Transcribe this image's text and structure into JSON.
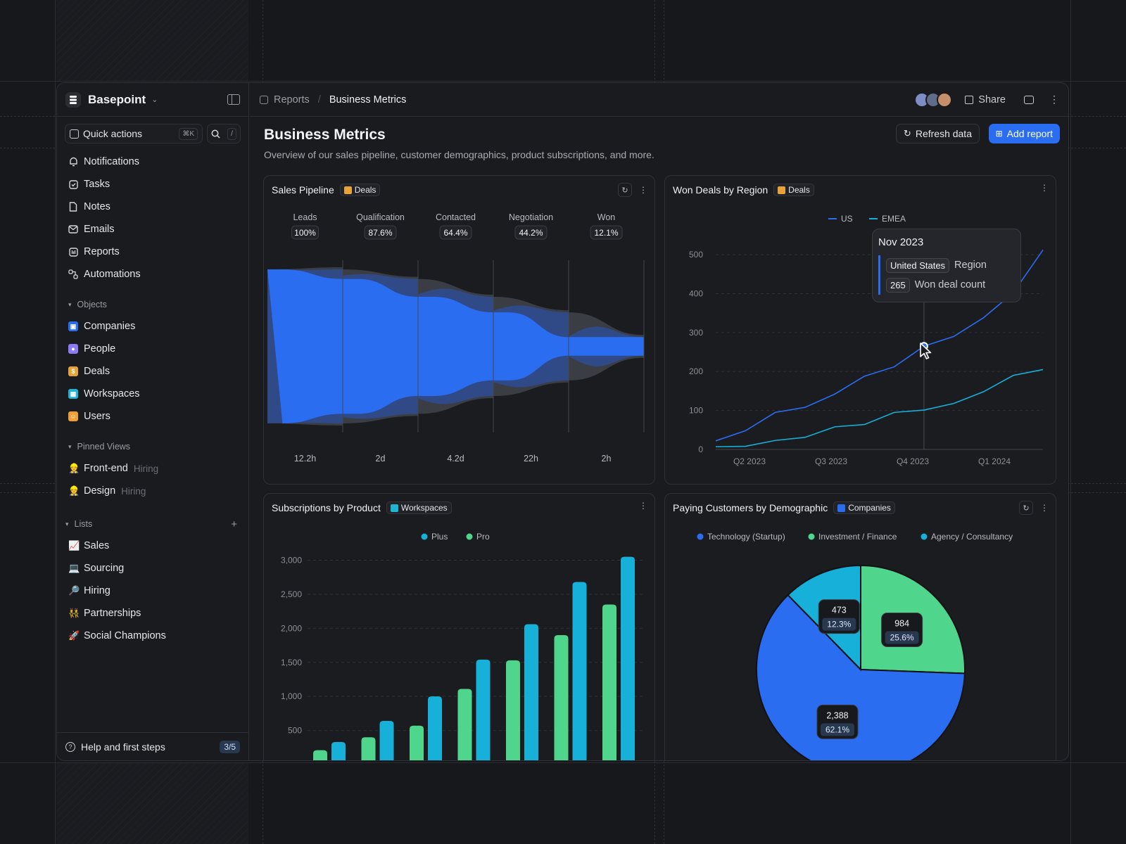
{
  "sidebar": {
    "brand": "Basepoint",
    "quick_actions": "Quick actions",
    "shortcut": "⌘K",
    "search_shortcut": "/",
    "nav": [
      {
        "label": "Notifications",
        "icon": "bell-icon"
      },
      {
        "label": "Tasks",
        "icon": "checkbox-icon"
      },
      {
        "label": "Notes",
        "icon": "file-icon"
      },
      {
        "label": "Emails",
        "icon": "mail-icon"
      },
      {
        "label": "Reports",
        "icon": "chart-icon"
      },
      {
        "label": "Automations",
        "icon": "workflow-icon"
      }
    ],
    "objects_title": "Objects",
    "objects": [
      {
        "label": "Companies",
        "color": "#2a6df0"
      },
      {
        "label": "People",
        "color": "#8b7cf6"
      },
      {
        "label": "Deals",
        "color": "#e8a23a"
      },
      {
        "label": "Workspaces",
        "color": "#1eb4d4"
      },
      {
        "label": "Users",
        "color": "#f0a030"
      }
    ],
    "pinned_title": "Pinned Views",
    "pinned": [
      {
        "label": "Front-end",
        "hint": "Hiring"
      },
      {
        "label": "Design",
        "hint": "Hiring"
      }
    ],
    "lists_title": "Lists",
    "lists": [
      {
        "label": "Sales",
        "emoji": "📈"
      },
      {
        "label": "Sourcing",
        "emoji": "💻"
      },
      {
        "label": "Hiring",
        "emoji": "🔎"
      },
      {
        "label": "Partnerships",
        "emoji": "👯"
      },
      {
        "label": "Social Champions",
        "emoji": "🚀"
      }
    ],
    "help": "Help and first steps",
    "help_progress": "3/5"
  },
  "topbar": {
    "crumb_parent": "Reports",
    "crumb_current": "Business Metrics",
    "share": "Share"
  },
  "page": {
    "title": "Business Metrics",
    "subtitle": "Overview of our sales pipeline, customer demographics, product subscriptions, and more.",
    "refresh": "Refresh data",
    "add_report": "Add report"
  },
  "cards": {
    "pipeline": {
      "title": "Sales Pipeline",
      "tag": "Deals"
    },
    "region": {
      "title": "Won Deals by Region",
      "tag": "Deals"
    },
    "subs": {
      "title": "Subscriptions by Product",
      "tag": "Workspaces"
    },
    "demo": {
      "title": "Paying Customers by Demographic",
      "tag": "Companies"
    }
  },
  "tooltip": {
    "title": "Nov 2023",
    "region_value": "United States",
    "region_label": "Region",
    "count_value": "265",
    "count_label": "Won deal count"
  },
  "colors": {
    "accent": "#2a6df0",
    "cyan": "#16b0d8",
    "green": "#4fd68c"
  },
  "chart_data": [
    {
      "type": "funnel",
      "stages": [
        "Leads",
        "Qualification",
        "Contacted",
        "Negotiation",
        "Won"
      ],
      "percent": [
        "100%",
        "87.6%",
        "64.4%",
        "44.2%",
        "12.1%"
      ],
      "values": [
        100,
        87.6,
        64.4,
        44.2,
        12.1
      ],
      "durations": [
        "12.2h",
        "2d",
        "4.2d",
        "22h",
        "2h"
      ]
    },
    {
      "type": "line",
      "x_ticks": [
        "Q2 2023",
        "Q3 2023",
        "Q4 2023",
        "Q1 2024"
      ],
      "yticks": [
        0,
        100,
        200,
        300,
        400,
        500
      ],
      "ylim": [
        0,
        520
      ],
      "legend": "top-center",
      "series": [
        {
          "name": "US",
          "color": "#2a6df0",
          "values": [
            22,
            48,
            95,
            108,
            142,
            188,
            212,
            265,
            290,
            338,
            402,
            512
          ]
        },
        {
          "name": "EMEA",
          "color": "#16b0d8",
          "values": [
            7,
            8,
            23,
            31,
            58,
            64,
            95,
            101,
            118,
            148,
            190,
            205
          ]
        }
      ]
    },
    {
      "type": "bar",
      "yticks": [
        "500",
        "1,000",
        "1,500",
        "2,000",
        "2,500",
        "3,000"
      ],
      "ylim": [
        0,
        3150
      ],
      "legend": "top-center",
      "series": [
        {
          "name": "Plus",
          "color": "#16b0d8",
          "values": [
            330,
            640,
            1000,
            1540,
            2060,
            2680,
            3050
          ]
        },
        {
          "name": "Pro",
          "color": "#4fd68c",
          "values": [
            210,
            400,
            570,
            1110,
            1530,
            1900,
            2350
          ]
        }
      ]
    },
    {
      "type": "pie",
      "legend": "top-center",
      "categories": [
        "Technology (Startup)",
        "Investment / Finance",
        "Agency / Consultancy"
      ],
      "colors": [
        "#2a6df0",
        "#4fd68c",
        "#16b0d8"
      ],
      "values": [
        2388,
        984,
        473
      ],
      "labels": [
        "2,388",
        "984",
        "473"
      ],
      "percent": [
        "62.1%",
        "25.6%",
        "12.3%"
      ]
    }
  ]
}
